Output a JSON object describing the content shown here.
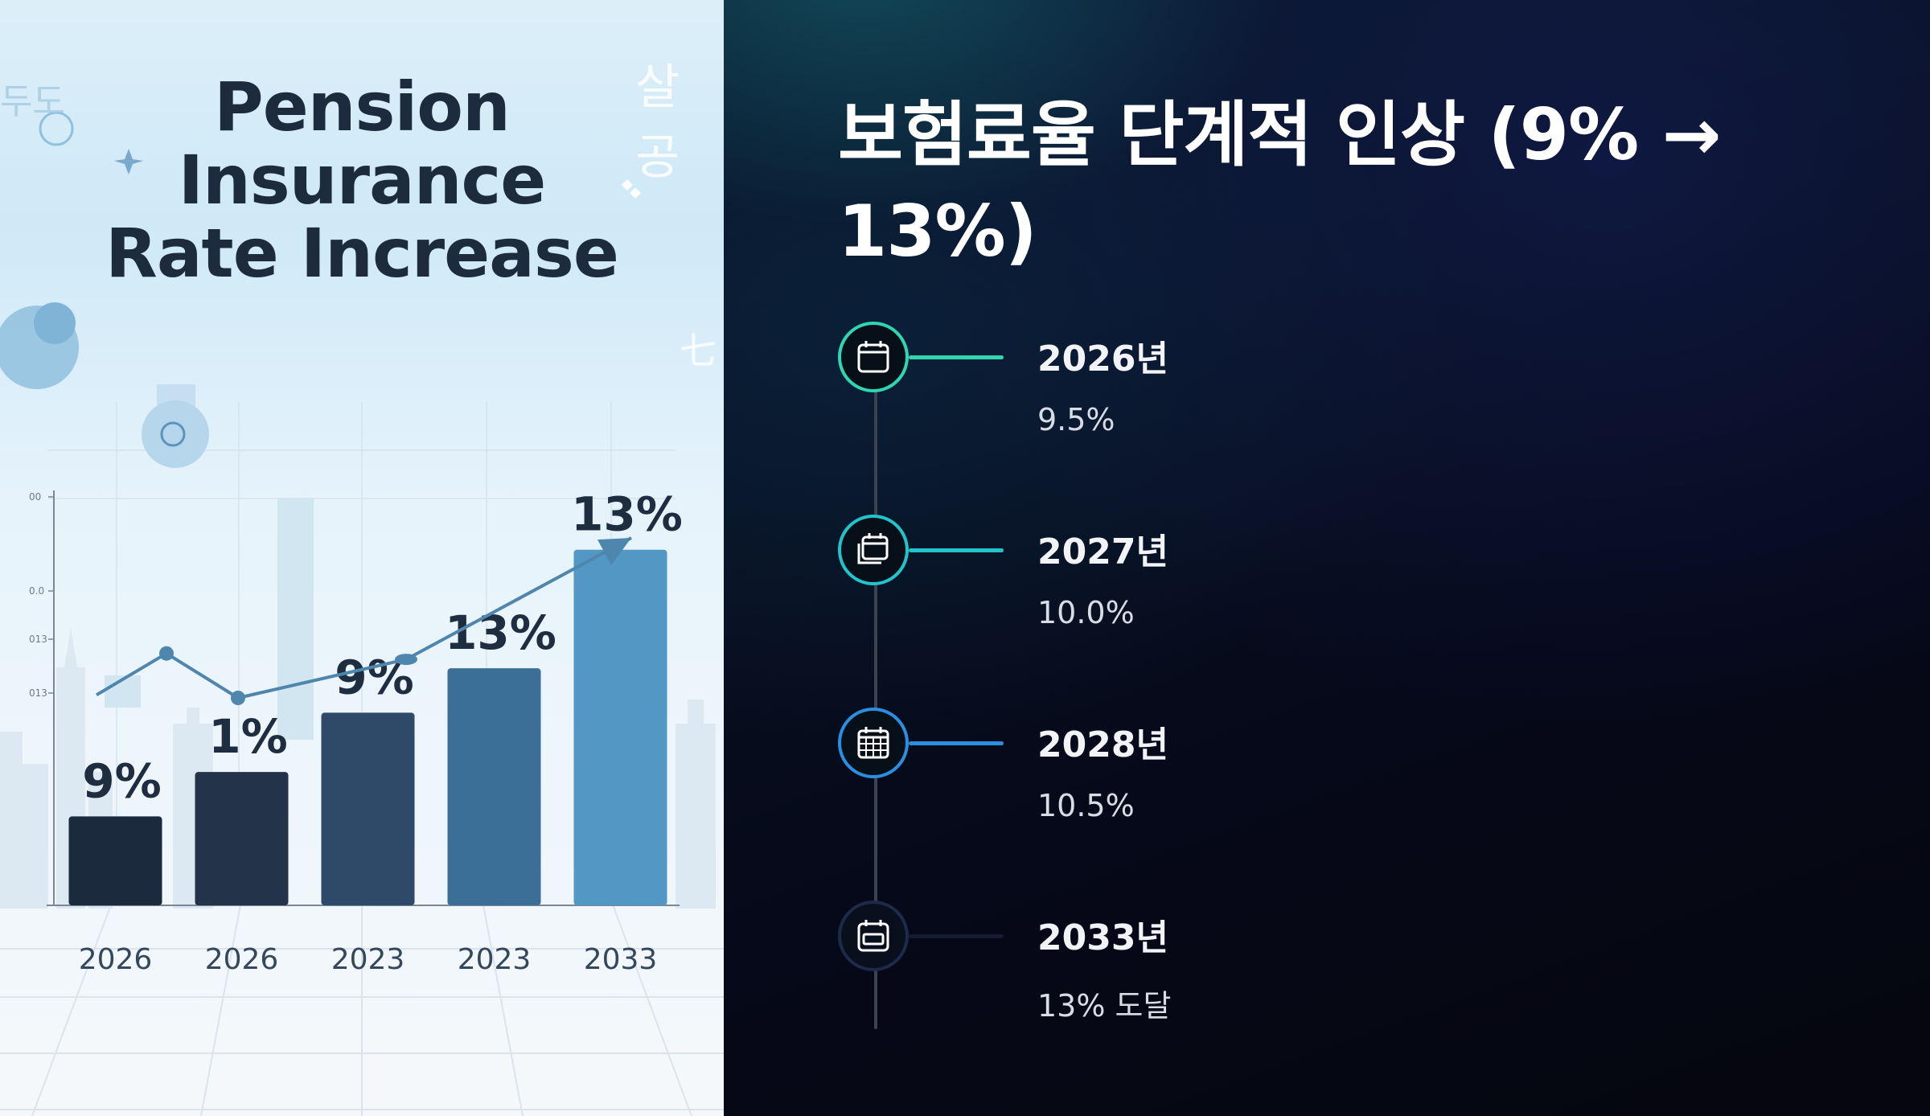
{
  "left_panel": {
    "title_lines": [
      "Pension",
      "Insurance",
      "Rate Increase"
    ],
    "decor_text": [
      "살공",
      "두도",
      "七"
    ],
    "chart_data": {
      "type": "bar",
      "categories": [
        "2026",
        "2026",
        "2023",
        "2023",
        "2033"
      ],
      "values": [
        3,
        4.5,
        6.5,
        8,
        12
      ],
      "bar_labels": [
        "9%",
        "1%",
        "9%",
        "13%",
        "13%"
      ],
      "bar_colors": [
        "#1c2a3e",
        "#22334a",
        "#2e4a68",
        "#3b6f98",
        "#5397c4"
      ],
      "trend_line": {
        "y": [
          7.1,
          8.5,
          7.0,
          8.3,
          12.4
        ],
        "color": "#4f86ad"
      },
      "y_tick_labels": [
        "00",
        "0.0",
        "013",
        "013"
      ],
      "ylim": [
        0,
        14
      ]
    }
  },
  "right_panel": {
    "title": "보험료율 단계적 인상 (9% → 13%)",
    "timeline": [
      {
        "year": "2026년",
        "value": "9.5%",
        "icon": "calendar-icon",
        "color": "#2fd6b0"
      },
      {
        "year": "2027년",
        "value": "10.0%",
        "icon": "calendar-stack-icon",
        "color": "#22c4cc"
      },
      {
        "year": "2028년",
        "value": "10.5%",
        "icon": "calendar-grid-icon",
        "color": "#2a8fe0"
      },
      {
        "year": "2033년",
        "value": "13% 도달",
        "icon": "calendar-icon",
        "color": "#1e2a4a"
      }
    ]
  }
}
